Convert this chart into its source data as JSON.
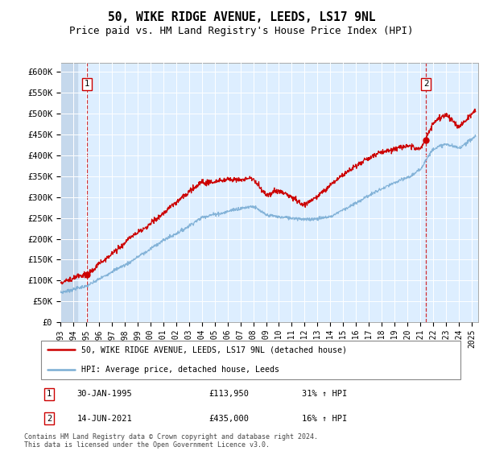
{
  "title": "50, WIKE RIDGE AVENUE, LEEDS, LS17 9NL",
  "subtitle": "Price paid vs. HM Land Registry's House Price Index (HPI)",
  "ylim": [
    0,
    620000
  ],
  "yticks": [
    0,
    50000,
    100000,
    150000,
    200000,
    250000,
    300000,
    350000,
    400000,
    450000,
    500000,
    550000,
    600000
  ],
  "ytick_labels": [
    "£0",
    "£50K",
    "£100K",
    "£150K",
    "£200K",
    "£250K",
    "£300K",
    "£350K",
    "£400K",
    "£450K",
    "£500K",
    "£550K",
    "£600K"
  ],
  "xlim_start": 1993.0,
  "xlim_end": 2025.5,
  "xtick_years": [
    1993,
    1994,
    1995,
    1996,
    1997,
    1998,
    1999,
    2000,
    2001,
    2002,
    2003,
    2004,
    2005,
    2006,
    2007,
    2008,
    2009,
    2010,
    2011,
    2012,
    2013,
    2014,
    2015,
    2016,
    2017,
    2018,
    2019,
    2020,
    2021,
    2022,
    2023,
    2024,
    2025
  ],
  "sale1_x": 1995.08,
  "sale1_y": 113950,
  "sale2_x": 2021.45,
  "sale2_y": 435000,
  "hpi_color": "#7aadd4",
  "price_color": "#cc0000",
  "background_plot": "#ddeeff",
  "background_hatch": "#c5d8ec",
  "grid_color": "#ffffff",
  "legend_line1": "50, WIKE RIDGE AVENUE, LEEDS, LS17 9NL (detached house)",
  "legend_line2": "HPI: Average price, detached house, Leeds",
  "table_row1": [
    "1",
    "30-JAN-1995",
    "£113,950",
    "31% ↑ HPI"
  ],
  "table_row2": [
    "2",
    "14-JUN-2021",
    "£435,000",
    "16% ↑ HPI"
  ],
  "footer": "Contains HM Land Registry data © Crown copyright and database right 2024.\nThis data is licensed under the Open Government Licence v3.0.",
  "title_fontsize": 10.5,
  "subtitle_fontsize": 9,
  "tick_fontsize": 7.5
}
